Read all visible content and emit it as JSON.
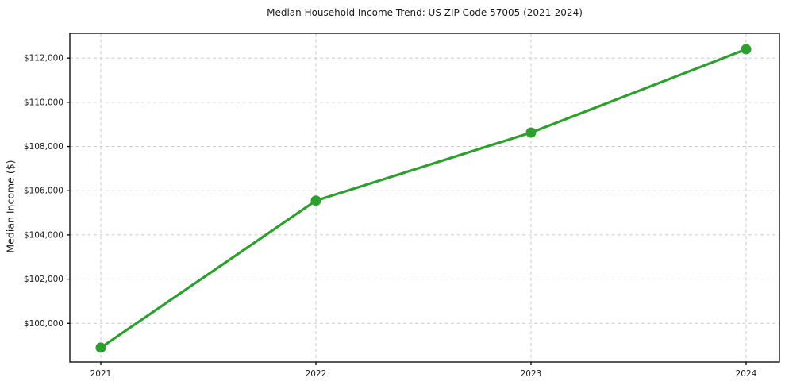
{
  "chart_data": {
    "type": "line",
    "title": "Median Household Income Trend: US ZIP Code 57005 (2021-2024)",
    "xlabel": "",
    "ylabel": "Median Income ($)",
    "categories": [
      "2021",
      "2022",
      "2023",
      "2024"
    ],
    "values": [
      98900,
      105550,
      108630,
      112400
    ],
    "ylim": [
      98250,
      113120
    ],
    "yticks": [
      100000,
      102000,
      104000,
      106000,
      108000,
      110000,
      112000
    ],
    "ytick_labels": [
      "$100,000",
      "$102,000",
      "$104,000",
      "$106,000",
      "$108,000",
      "$110,000",
      "$112,000"
    ],
    "grid": true,
    "grid_style": "dashed",
    "grid_color": "#cbcbcb",
    "line_color": "#2ca02c",
    "marker": "circle",
    "axis_color": "#000000",
    "text_color": "#1a1a1a",
    "background": "#ffffff",
    "legend": "none"
  }
}
